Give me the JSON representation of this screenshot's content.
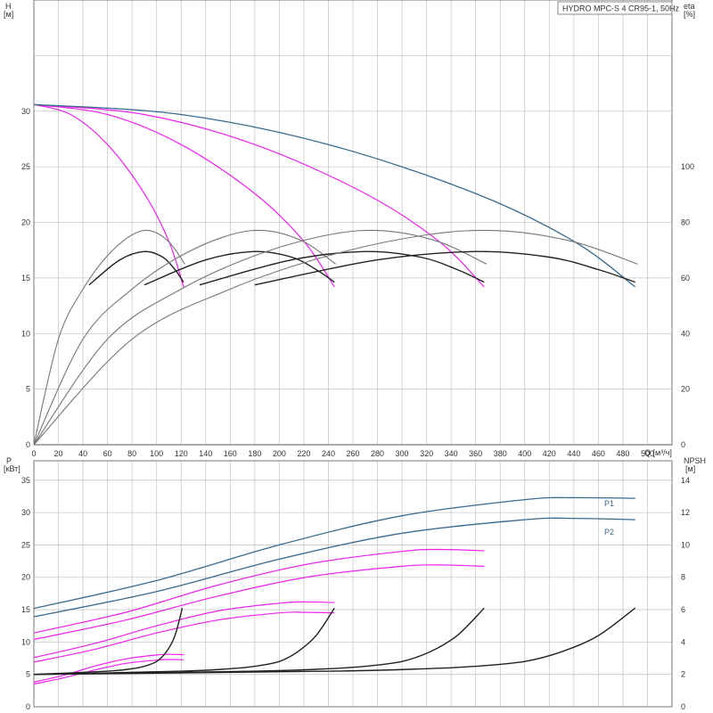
{
  "title": "HYDRO MPC-S 4 CR95-1, 50Hz",
  "colors": {
    "dark": "#222222",
    "gray": "#777777",
    "magenta": "#ee22ee",
    "blue": "#3a6a8c"
  },
  "chart_data": [
    {
      "type": "line",
      "x_axis": {
        "label": "Q [м³/ч]",
        "range": [
          0,
          520
        ],
        "ticks": [
          0,
          20,
          40,
          60,
          80,
          100,
          120,
          140,
          160,
          180,
          200,
          220,
          240,
          260,
          280,
          300,
          320,
          340,
          360,
          380,
          400,
          420,
          440,
          460,
          480,
          500
        ]
      },
      "y_left": {
        "label": "H",
        "unit": "[м]",
        "range": [
          0,
          40
        ],
        "ticks": [
          0,
          5,
          10,
          15,
          20,
          25,
          30
        ]
      },
      "y_right": {
        "label": "eta",
        "unit": "[%]",
        "range": [
          0,
          160
        ],
        "ticks": [
          0,
          20,
          40,
          60,
          80,
          100
        ]
      },
      "grid": true,
      "series": [
        {
          "group": "H",
          "pumps": 1,
          "color": "magenta",
          "points": [
            [
              0,
              30.6
            ],
            [
              30,
              29.7
            ],
            [
              60,
              27.0
            ],
            [
              90,
              22.6
            ],
            [
              110,
              18.3
            ],
            [
              122,
              14.2
            ]
          ]
        },
        {
          "group": "H",
          "pumps": 2,
          "color": "magenta",
          "points": [
            [
              0,
              30.6
            ],
            [
              60,
              29.7
            ],
            [
              120,
              27.0
            ],
            [
              180,
              22.6
            ],
            [
              220,
              18.3
            ],
            [
              245,
              14.2
            ]
          ]
        },
        {
          "group": "H",
          "pumps": 3,
          "color": "magenta",
          "points": [
            [
              0,
              30.6
            ],
            [
              90,
              29.7
            ],
            [
              180,
              27.0
            ],
            [
              270,
              22.6
            ],
            [
              330,
              18.3
            ],
            [
              367,
              14.2
            ]
          ]
        },
        {
          "group": "H",
          "pumps": 4,
          "color": "blue",
          "points": [
            [
              0,
              30.6
            ],
            [
              120,
              29.7
            ],
            [
              240,
              27.0
            ],
            [
              360,
              22.6
            ],
            [
              440,
              18.3
            ],
            [
              490,
              14.2
            ]
          ]
        },
        {
          "group": "eta",
          "pumps": 1,
          "color": "gray",
          "points": [
            [
              0,
              0
            ],
            [
              20,
              38
            ],
            [
              40,
              56
            ],
            [
              60,
              68
            ],
            [
              80,
              75.5
            ],
            [
              95,
              77
            ],
            [
              110,
              73
            ],
            [
              123,
              65
            ]
          ]
        },
        {
          "group": "eta",
          "pumps": 1,
          "color": "dark",
          "points": [
            [
              45,
              57.5
            ],
            [
              70,
              66.5
            ],
            [
              90,
              69.5
            ],
            [
              105,
              67.5
            ],
            [
              115,
              63
            ],
            [
              122,
              58.5
            ]
          ]
        },
        {
          "group": "eta",
          "pumps": 2,
          "color": "gray",
          "points": [
            [
              0,
              0
            ],
            [
              40,
              38
            ],
            [
              80,
              56
            ],
            [
              120,
              68
            ],
            [
              160,
              75.5
            ],
            [
              190,
              77
            ],
            [
              220,
              73
            ],
            [
              246,
              65
            ]
          ]
        },
        {
          "group": "eta",
          "pumps": 2,
          "color": "dark",
          "points": [
            [
              90,
              57.5
            ],
            [
              140,
              66.5
            ],
            [
              180,
              69.5
            ],
            [
              210,
              67.5
            ],
            [
              230,
              63
            ],
            [
              245,
              58.5
            ]
          ]
        },
        {
          "group": "eta",
          "pumps": 3,
          "color": "gray",
          "points": [
            [
              0,
              0
            ],
            [
              60,
              38
            ],
            [
              120,
              56
            ],
            [
              180,
              68
            ],
            [
              240,
              75.5
            ],
            [
              285,
              77
            ],
            [
              330,
              73
            ],
            [
              369,
              65
            ]
          ]
        },
        {
          "group": "eta",
          "pumps": 3,
          "color": "dark",
          "points": [
            [
              135,
              57.5
            ],
            [
              210,
              66.5
            ],
            [
              270,
              69.5
            ],
            [
              315,
              67.5
            ],
            [
              345,
              63
            ],
            [
              367,
              58.5
            ]
          ]
        },
        {
          "group": "eta",
          "pumps": 4,
          "color": "gray",
          "points": [
            [
              0,
              0
            ],
            [
              80,
              38
            ],
            [
              160,
              56
            ],
            [
              240,
              68
            ],
            [
              320,
              75.5
            ],
            [
              380,
              77
            ],
            [
              440,
              73
            ],
            [
              492,
              65
            ]
          ]
        },
        {
          "group": "eta",
          "pumps": 4,
          "color": "dark",
          "points": [
            [
              180,
              57.5
            ],
            [
              280,
              66.5
            ],
            [
              360,
              69.5
            ],
            [
              420,
              67.5
            ],
            [
              460,
              63
            ],
            [
              490,
              58.5
            ]
          ]
        }
      ]
    },
    {
      "type": "line",
      "x_axis": {
        "range": [
          0,
          520
        ]
      },
      "y_left": {
        "label": "P",
        "unit": "[кВт]",
        "range": [
          0,
          38
        ],
        "ticks": [
          0,
          5,
          10,
          15,
          20,
          25,
          30,
          35
        ]
      },
      "y_right": {
        "label": "NPSH",
        "unit": "[м]",
        "range": [
          0,
          15.2
        ],
        "ticks": [
          0,
          2,
          4,
          6,
          8,
          10,
          12,
          14
        ]
      },
      "legend": [
        "P1",
        "P2"
      ],
      "grid": true,
      "series": [
        {
          "group": "P1",
          "pumps": 4,
          "color": "blue",
          "points": [
            [
              0,
              15.2
            ],
            [
              100,
              19.5
            ],
            [
              200,
              25.0
            ],
            [
              300,
              29.5
            ],
            [
              400,
              32.0
            ],
            [
              440,
              32.3
            ],
            [
              490,
              32.2
            ]
          ]
        },
        {
          "group": "P2",
          "pumps": 4,
          "color": "blue",
          "points": [
            [
              0,
              13.9
            ],
            [
              100,
              17.8
            ],
            [
              200,
              22.8
            ],
            [
              300,
              26.8
            ],
            [
              400,
              28.9
            ],
            [
              440,
              29.1
            ],
            [
              490,
              28.9
            ]
          ]
        },
        {
          "group": "P1",
          "pumps": 3,
          "color": "magenta",
          "points": [
            [
              0,
              11.4
            ],
            [
              75,
              14.6
            ],
            [
              150,
              18.8
            ],
            [
              225,
              22.1
            ],
            [
              300,
              24.0
            ],
            [
              330,
              24.3
            ],
            [
              367,
              24.1
            ]
          ]
        },
        {
          "group": "P2",
          "pumps": 3,
          "color": "magenta",
          "points": [
            [
              0,
              10.4
            ],
            [
              75,
              13.4
            ],
            [
              150,
              17.1
            ],
            [
              225,
              20.1
            ],
            [
              300,
              21.7
            ],
            [
              330,
              21.9
            ],
            [
              367,
              21.7
            ]
          ]
        },
        {
          "group": "P1",
          "pumps": 2,
          "color": "magenta",
          "points": [
            [
              0,
              7.6
            ],
            [
              50,
              9.8
            ],
            [
              100,
              12.5
            ],
            [
              150,
              14.8
            ],
            [
              200,
              16.0
            ],
            [
              220,
              16.2
            ],
            [
              245,
              16.1
            ]
          ]
        },
        {
          "group": "P2",
          "pumps": 2,
          "color": "magenta",
          "points": [
            [
              0,
              6.9
            ],
            [
              50,
              8.9
            ],
            [
              100,
              11.4
            ],
            [
              150,
              13.4
            ],
            [
              200,
              14.5
            ],
            [
              220,
              14.6
            ],
            [
              245,
              14.5
            ]
          ]
        },
        {
          "group": "P1",
          "pumps": 1,
          "color": "magenta",
          "points": [
            [
              0,
              3.8
            ],
            [
              25,
              4.9
            ],
            [
              50,
              6.3
            ],
            [
              75,
              7.4
            ],
            [
              100,
              8.0
            ],
            [
              110,
              8.1
            ],
            [
              122,
              8.05
            ]
          ]
        },
        {
          "group": "P2",
          "pumps": 1,
          "color": "magenta",
          "points": [
            [
              0,
              3.5
            ],
            [
              25,
              4.5
            ],
            [
              50,
              5.7
            ],
            [
              75,
              6.7
            ],
            [
              100,
              7.2
            ],
            [
              110,
              7.3
            ],
            [
              122,
              7.25
            ]
          ]
        },
        {
          "group": "NPSH",
          "pumps": 1,
          "color": "dark",
          "points": [
            [
              0,
              2.0
            ],
            [
              60,
              2.2
            ],
            [
              80,
              2.35
            ],
            [
              90,
              2.5
            ],
            [
              100,
              2.8
            ],
            [
              108,
              3.4
            ],
            [
              115,
              4.4
            ],
            [
              121,
              6.1
            ]
          ]
        },
        {
          "group": "NPSH",
          "pumps": 2,
          "color": "dark",
          "points": [
            [
              0,
              2.0
            ],
            [
              120,
              2.2
            ],
            [
              160,
              2.35
            ],
            [
              180,
              2.5
            ],
            [
              200,
              2.8
            ],
            [
              215,
              3.4
            ],
            [
              230,
              4.4
            ],
            [
              245,
              6.1
            ]
          ]
        },
        {
          "group": "NPSH",
          "pumps": 3,
          "color": "dark",
          "points": [
            [
              0,
              2.0
            ],
            [
              180,
              2.2
            ],
            [
              240,
              2.35
            ],
            [
              270,
              2.5
            ],
            [
              300,
              2.8
            ],
            [
              323,
              3.4
            ],
            [
              345,
              4.4
            ],
            [
              367,
              6.1
            ]
          ]
        },
        {
          "group": "NPSH",
          "pumps": 4,
          "color": "dark",
          "points": [
            [
              0,
              2.0
            ],
            [
              240,
              2.2
            ],
            [
              320,
              2.35
            ],
            [
              360,
              2.5
            ],
            [
              400,
              2.8
            ],
            [
              430,
              3.4
            ],
            [
              460,
              4.4
            ],
            [
              490,
              6.1
            ]
          ]
        }
      ]
    }
  ]
}
